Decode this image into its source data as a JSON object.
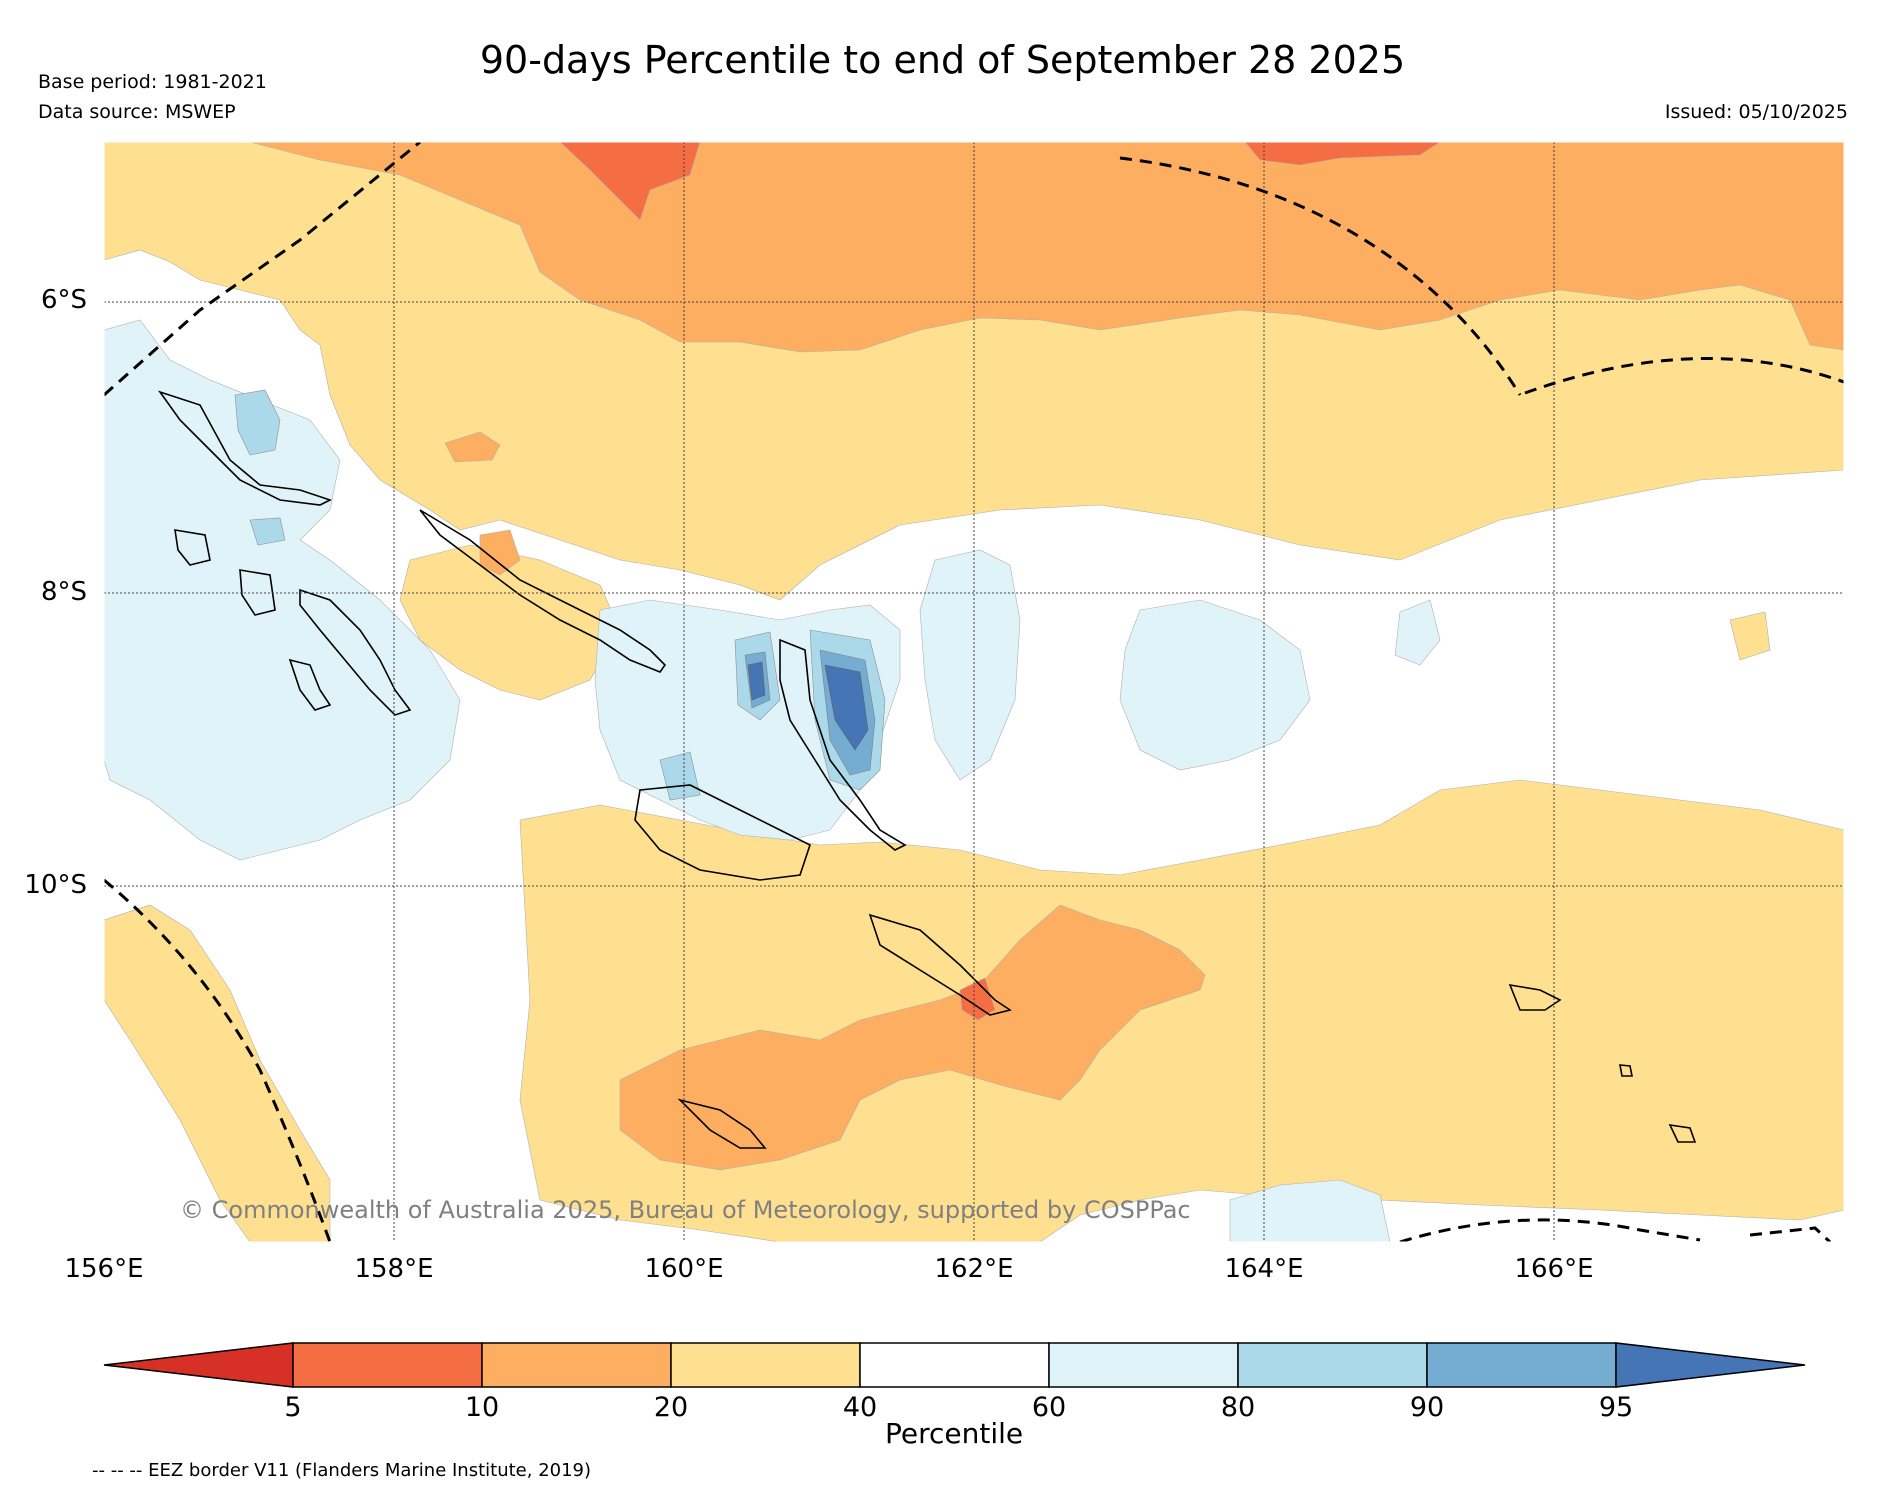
{
  "title": "90-days Percentile to end of September 28 2025",
  "meta": {
    "base_period": "Base period: 1981-2021",
    "data_source": "Data source: MSWEP",
    "issued": "Issued: 05/10/2025"
  },
  "map": {
    "lat_labels": [
      "6°S",
      "8°S",
      "10°S"
    ],
    "lon_labels": [
      "156°E",
      "158°E",
      "160°E",
      "162°E",
      "164°E",
      "166°E"
    ],
    "extent": {
      "lon_min": 156,
      "lon_max": 168,
      "lat_min": -12.4,
      "lat_max": -4.9
    },
    "copyright": "© Commonwealth of Australia 2025, Bureau of Meteorology, supported by COSPPac"
  },
  "colorbar": {
    "label": "Percentile",
    "ticks": [
      "5",
      "10",
      "20",
      "40",
      "60",
      "80",
      "90",
      "95"
    ],
    "colors": [
      "#d73027",
      "#f46d43",
      "#fdae61",
      "#fee090",
      "#ffffff",
      "#e0f3f8",
      "#abd9e9",
      "#74add1",
      "#4575b4"
    ]
  },
  "legend_note": "-- -- -- EEZ border V11 (Flanders Marine Institute, 2019)"
}
